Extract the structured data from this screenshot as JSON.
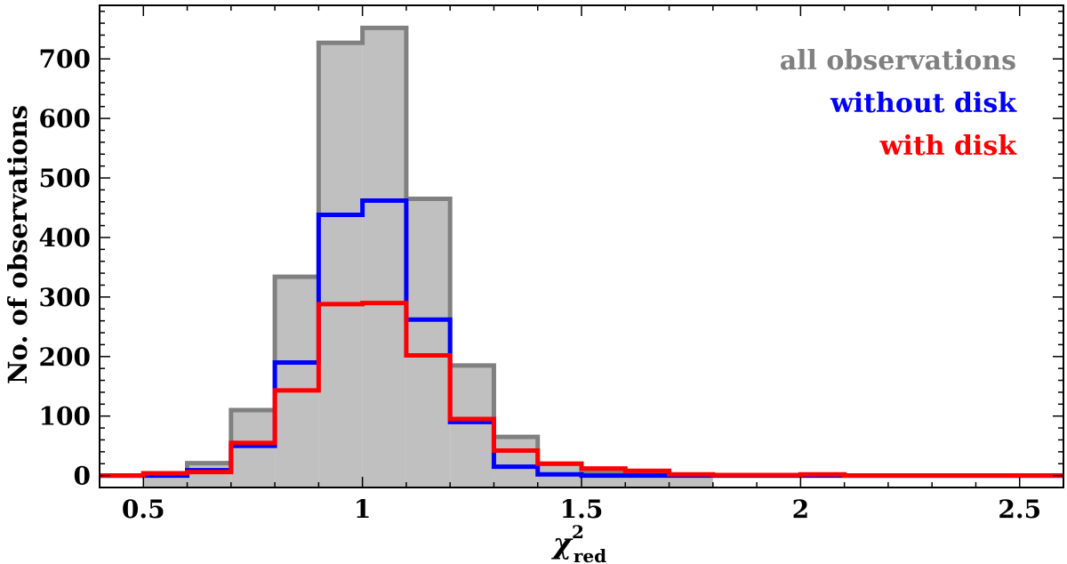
{
  "chart_data": {
    "type": "histogram",
    "xlabel": "χ",
    "xlabel_sup": "2",
    "xlabel_sub": "red",
    "ylabel": "No. of observations",
    "xlim": [
      0.4,
      2.6
    ],
    "ylim": [
      -20,
      790
    ],
    "x_ticks": [
      0.5,
      1,
      1.5,
      2,
      2.5
    ],
    "x_tick_labels": [
      "0.5",
      "1",
      "1.5",
      "2",
      "2.5"
    ],
    "y_ticks": [
      0,
      100,
      200,
      300,
      400,
      500,
      600,
      700
    ],
    "y_tick_labels": [
      "0",
      "100",
      "200",
      "300",
      "400",
      "500",
      "600",
      "700"
    ],
    "bin_edges": [
      0.4,
      0.5,
      0.6,
      0.7,
      0.8,
      0.9,
      1.0,
      1.1,
      1.2,
      1.3,
      1.4,
      1.5,
      1.6,
      1.7,
      1.8,
      1.9,
      2.0,
      2.1,
      2.2,
      2.3,
      2.4,
      2.5,
      2.6
    ],
    "series": [
      {
        "name": "all observations",
        "color": "#808080",
        "fill": "#c0c0c0",
        "values": [
          0,
          3,
          21,
          110,
          334,
          727,
          752,
          465,
          185,
          65,
          20,
          7,
          2,
          1,
          0,
          0,
          0,
          0,
          0,
          0,
          0,
          0
        ]
      },
      {
        "name": "without disk",
        "color": "#0000ff",
        "values": [
          0,
          0,
          9,
          50,
          190,
          438,
          462,
          262,
          90,
          15,
          2,
          0,
          0,
          0,
          0,
          0,
          0,
          0,
          0,
          0,
          0,
          0
        ]
      },
      {
        "name": "with disk",
        "color": "#ff0000",
        "values": [
          0,
          4,
          6,
          55,
          143,
          288,
          290,
          202,
          95,
          42,
          20,
          12,
          8,
          2,
          1,
          1,
          2,
          0,
          0,
          0,
          0,
          0
        ]
      }
    ],
    "legend_position": "top-right"
  }
}
